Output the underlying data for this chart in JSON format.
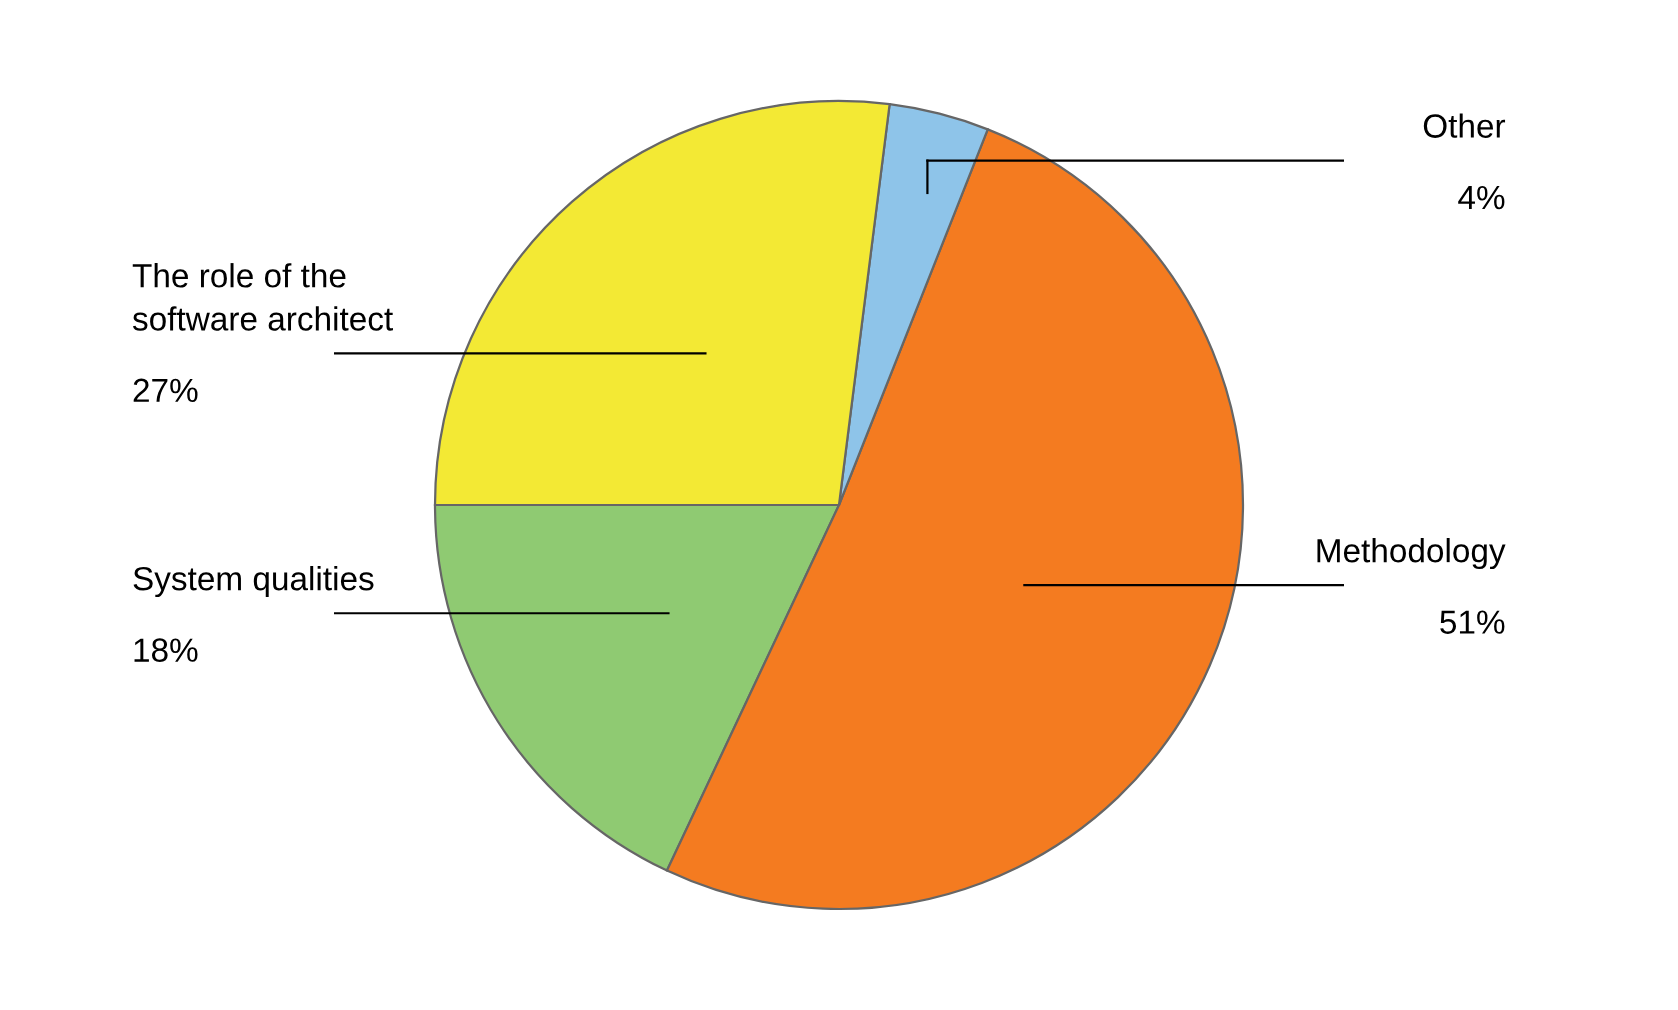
{
  "chart_data": {
    "type": "pie",
    "categories": [
      "System qualities",
      "Methodology",
      "Other",
      "The role of the\nsoftware architect"
    ],
    "values": [
      18,
      51,
      4,
      27
    ],
    "colors": [
      "#8fca72",
      "#f47b20",
      "#8ec4e9",
      "#f3e934"
    ],
    "value_labels": [
      "18%",
      "51%",
      "4%",
      "27%"
    ]
  }
}
